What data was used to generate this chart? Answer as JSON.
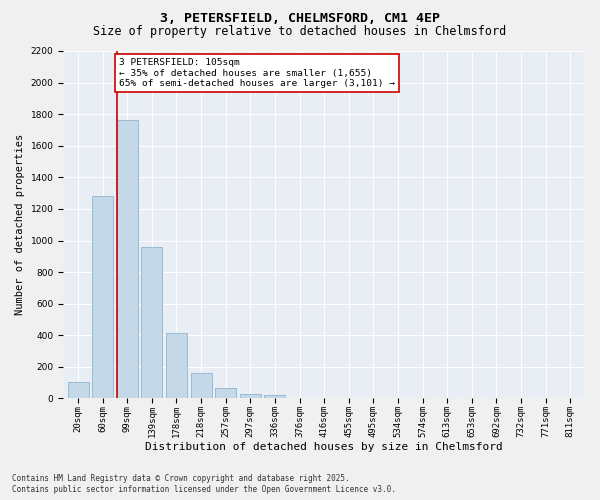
{
  "title": "3, PETERSFIELD, CHELMSFORD, CM1 4EP",
  "subtitle": "Size of property relative to detached houses in Chelmsford",
  "xlabel": "Distribution of detached houses by size in Chelmsford",
  "ylabel": "Number of detached properties",
  "categories": [
    "20sqm",
    "60sqm",
    "99sqm",
    "139sqm",
    "178sqm",
    "218sqm",
    "257sqm",
    "297sqm",
    "336sqm",
    "376sqm",
    "416sqm",
    "455sqm",
    "495sqm",
    "534sqm",
    "574sqm",
    "613sqm",
    "653sqm",
    "692sqm",
    "732sqm",
    "771sqm",
    "811sqm"
  ],
  "values": [
    105,
    1280,
    1760,
    960,
    415,
    160,
    65,
    30,
    20,
    5,
    0,
    0,
    0,
    0,
    0,
    0,
    0,
    0,
    0,
    0,
    0
  ],
  "bar_color": "#c5d8e8",
  "bar_edge_color": "#7faac8",
  "vline_color": "#cc0000",
  "annotation_text": "3 PETERSFIELD: 105sqm\n← 35% of detached houses are smaller (1,655)\n65% of semi-detached houses are larger (3,101) →",
  "annotation_box_color": "#ffffff",
  "annotation_box_edge": "#cc0000",
  "ylim": [
    0,
    2200
  ],
  "yticks": [
    0,
    200,
    400,
    600,
    800,
    1000,
    1200,
    1400,
    1600,
    1800,
    2000,
    2200
  ],
  "background_color": "#e8eef4",
  "grid_color": "#ffffff",
  "footer_line1": "Contains HM Land Registry data © Crown copyright and database right 2025.",
  "footer_line2": "Contains public sector information licensed under the Open Government Licence v3.0.",
  "title_fontsize": 9.5,
  "subtitle_fontsize": 8.5,
  "xlabel_fontsize": 8,
  "ylabel_fontsize": 7.5,
  "tick_fontsize": 6.5,
  "annot_fontsize": 6.8,
  "footer_fontsize": 5.5
}
